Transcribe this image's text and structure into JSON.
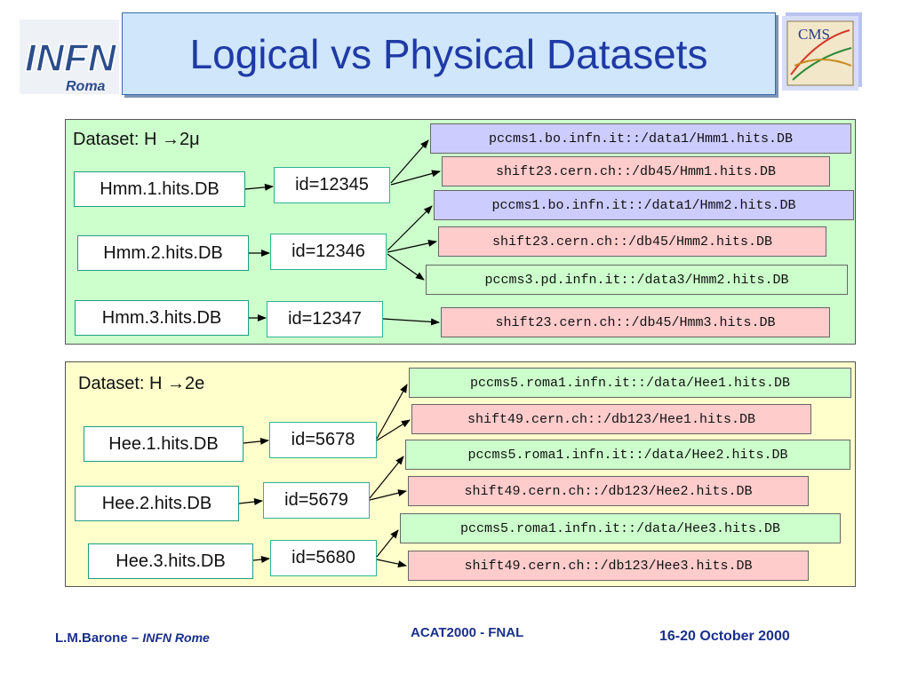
{
  "header": {
    "title": "Logical vs Physical Datasets",
    "left_logo_text": "INFN",
    "left_logo_sub": "Roma",
    "right_logo_text": "CMS"
  },
  "datasets": [
    {
      "label": "Dataset: H →2μ",
      "files": [
        {
          "lfn": "Hmm.1.hits.DB",
          "id": "id=12345",
          "pfns": [
            {
              "text": "pccms1.bo.infn.it::/data1/Hmm1.hits.DB",
              "color": "#ccccff"
            },
            {
              "text": "shift23.cern.ch::/db45/Hmm1.hits.DB",
              "color": "#ffcccc"
            }
          ]
        },
        {
          "lfn": "Hmm.2.hits.DB",
          "id": "id=12346",
          "pfns": [
            {
              "text": "pccms1.bo.infn.it::/data1/Hmm2.hits.DB",
              "color": "#ccccff"
            },
            {
              "text": "shift23.cern.ch::/db45/Hmm2.hits.DB",
              "color": "#ffcccc"
            },
            {
              "text": "pccms3.pd.infn.it::/data3/Hmm2.hits.DB",
              "color": "#ccffcc"
            }
          ]
        },
        {
          "lfn": "Hmm.3.hits.DB",
          "id": "id=12347",
          "pfns": [
            {
              "text": "shift23.cern.ch::/db45/Hmm3.hits.DB",
              "color": "#ffcccc"
            }
          ]
        }
      ]
    },
    {
      "label": "Dataset: H →2e",
      "files": [
        {
          "lfn": "Hee.1.hits.DB",
          "id": "id=5678",
          "pfns": [
            {
              "text": "pccms5.roma1.infn.it::/data/Hee1.hits.DB",
              "color": "#ccffcc"
            },
            {
              "text": "shift49.cern.ch::/db123/Hee1.hits.DB",
              "color": "#ffcccc"
            }
          ]
        },
        {
          "lfn": "Hee.2.hits.DB",
          "id": "id=5679",
          "pfns": [
            {
              "text": "pccms5.roma1.infn.it::/data/Hee2.hits.DB",
              "color": "#ccffcc"
            },
            {
              "text": "shift49.cern.ch::/db123/Hee2.hits.DB",
              "color": "#ffcccc"
            }
          ]
        },
        {
          "lfn": "Hee.3.hits.DB",
          "id": "id=5680",
          "pfns": [
            {
              "text": "pccms5.roma1.infn.it::/data/Hee3.hits.DB",
              "color": "#ccffcc"
            },
            {
              "text": "shift49.cern.ch::/db123/Hee3.hits.DB",
              "color": "#ffcccc"
            }
          ]
        }
      ]
    }
  ],
  "footer": {
    "author": "L.M.Barone",
    "separator": " – ",
    "affiliation": "INFN Rome",
    "conference": "ACAT2000 - FNAL",
    "dates": "16-20 October 2000"
  }
}
